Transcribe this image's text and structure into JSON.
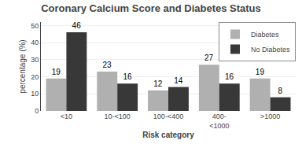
{
  "chart_data": {
    "type": "bar",
    "title": "Coronary Calcium Score and Diabetes Status",
    "categories": [
      "<10",
      "10-<100",
      "100-<400",
      "400-\n<1000",
      ">1000"
    ],
    "series": [
      {
        "name": "Diabetes",
        "color": "#b0b0b0",
        "values": [
          19,
          23,
          12,
          27,
          19
        ]
      },
      {
        "name": "No Diabetes",
        "color": "#383838",
        "values": [
          46,
          16,
          14,
          16,
          8
        ]
      }
    ],
    "xlabel": "Risk category",
    "ylabel": "percentage (%)",
    "ylim": [
      0,
      52
    ],
    "yticks": [
      0,
      10,
      20,
      30,
      40,
      50
    ],
    "grid": true,
    "legend": "upper right",
    "data_labels": true
  }
}
